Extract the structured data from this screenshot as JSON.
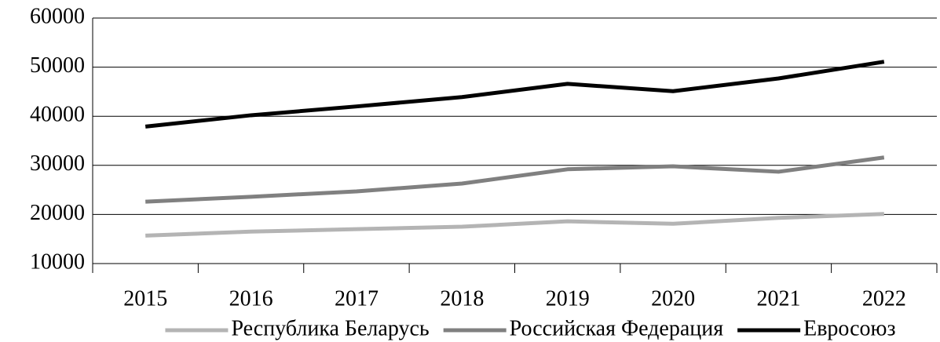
{
  "chart_data": {
    "type": "line",
    "categories": [
      "2015",
      "2016",
      "2017",
      "2018",
      "2019",
      "2020",
      "2021",
      "2022"
    ],
    "series": [
      {
        "name": "Республика Беларусь",
        "color": "#b4b4b4",
        "values": [
          15700,
          16500,
          17000,
          17500,
          18600,
          18100,
          19300,
          20100
        ]
      },
      {
        "name": "Российская Федерация",
        "color": "#808080",
        "values": [
          22600,
          23600,
          24700,
          26300,
          29200,
          29800,
          28700,
          31600
        ]
      },
      {
        "name": "Евросоюз",
        "color": "#000000",
        "values": [
          37900,
          40200,
          42000,
          43900,
          46600,
          45100,
          47700,
          51100
        ]
      }
    ],
    "ylim": [
      10000,
      60000
    ],
    "yticks": [
      10000,
      20000,
      30000,
      40000,
      50000,
      60000
    ],
    "grid": true,
    "legend": "bottom"
  }
}
